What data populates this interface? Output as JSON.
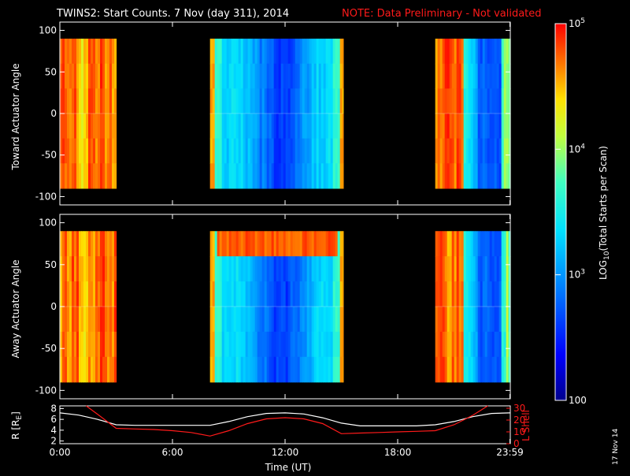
{
  "chart_data": [
    {
      "type": "heatmap",
      "title": "TWINS2: Start Counts.  7 Nov (day 311), 2014",
      "note": "NOTE: Data Preliminary - Not validated",
      "ylabel": "Toward Actuator Angle",
      "yticks": [
        "100",
        "50",
        "0",
        "-50",
        "-100"
      ],
      "ytick_values": [
        100,
        50,
        0,
        -50,
        -100
      ],
      "ylim": [
        -110,
        110
      ],
      "xlim": [
        0,
        24
      ],
      "data_angle_range": [
        -90,
        90
      ],
      "segments": [
        {
          "start": 0.0,
          "end": 3.0,
          "level": "high",
          "description_values": [
            5.0
          ]
        },
        {
          "start": 8.0,
          "end": 15.1,
          "level": "low"
        },
        {
          "start": 20.0,
          "end": 24.0,
          "level": "mixed"
        }
      ]
    },
    {
      "type": "heatmap",
      "ylabel": "Away Actuator Angle",
      "yticks": [
        "100",
        "50",
        "0",
        "-50",
        "-100"
      ],
      "ytick_values": [
        100,
        50,
        0,
        -50,
        -100
      ],
      "ylim": [
        -110,
        110
      ],
      "xlim": [
        0,
        24
      ],
      "data_angle_range": [
        -90,
        90
      ],
      "segments": [
        {
          "start": 0.0,
          "end": 3.0,
          "level": "high"
        },
        {
          "start": 8.0,
          "end": 15.1,
          "level": "low"
        },
        {
          "start": 20.0,
          "end": 24.0,
          "level": "mixed"
        }
      ]
    },
    {
      "type": "line",
      "ylabel_left": "R [RE]",
      "ylabel_right": "L Shell",
      "xlabel": "Time (UT)",
      "xticks": [
        "0:00",
        "6:00",
        "12:00",
        "18:00",
        "23:59"
      ],
      "xtick_values": [
        0,
        6,
        12,
        18,
        23.98
      ],
      "yticks_left": [
        "8",
        "6",
        "4",
        "2"
      ],
      "ytick_left_values": [
        8,
        6,
        4,
        2
      ],
      "ylim_left": [
        1.5,
        8.5
      ],
      "yticks_right": [
        "30",
        "20",
        "10",
        "0"
      ],
      "ytick_right_values": [
        30,
        20,
        10,
        0
      ],
      "ylim_right": [
        0,
        32
      ],
      "series": [
        {
          "name": "R",
          "color": "#ffffff",
          "axis": "left",
          "x": [
            0,
            1,
            2,
            3,
            4,
            5,
            6,
            7,
            8,
            9,
            10,
            11,
            12,
            13,
            14,
            15,
            16,
            17,
            18,
            19,
            20,
            21,
            22,
            23,
            24
          ],
          "y": [
            7.2,
            6.8,
            6.0,
            5.0,
            4.9,
            4.9,
            4.9,
            4.9,
            4.9,
            5.6,
            6.5,
            7.1,
            7.2,
            7.0,
            6.3,
            5.3,
            4.8,
            4.8,
            4.8,
            4.8,
            5.0,
            5.6,
            6.5,
            7.1,
            7.2
          ]
        },
        {
          "name": "L Shell",
          "color": "#ff1a1a",
          "axis": "right",
          "x": [
            1.4,
            2,
            3,
            4,
            5,
            6,
            7,
            8,
            9,
            10,
            11,
            12,
            13,
            14,
            15,
            16,
            17,
            18,
            19,
            20,
            21,
            22,
            22.8
          ],
          "y": [
            32,
            25,
            13,
            12.5,
            12,
            11,
            9.5,
            6.5,
            11,
            17,
            21,
            22,
            21,
            17,
            8.5,
            9,
            9.5,
            10,
            10.5,
            11,
            16,
            24,
            32
          ]
        }
      ]
    }
  ],
  "colorbar": {
    "label": "LOG10(Total Starts per Scan)",
    "label_prefix": "LOG",
    "label_sub": "10",
    "label_suffix": "(Total Starts per Scan)",
    "ticks": [
      {
        "base": "10",
        "exp": "5",
        "value": 100000
      },
      {
        "base": "10",
        "exp": "4",
        "value": 10000
      },
      {
        "base": "10",
        "exp": "3",
        "value": 1000
      },
      {
        "base": "100",
        "exp": "",
        "value": 100
      }
    ],
    "scale": "log",
    "range": [
      100,
      100000
    ]
  },
  "r_label_base": "R [R",
  "r_label_sub": "E",
  "r_label_end": "]",
  "date_stamp": "17 Nov 14"
}
